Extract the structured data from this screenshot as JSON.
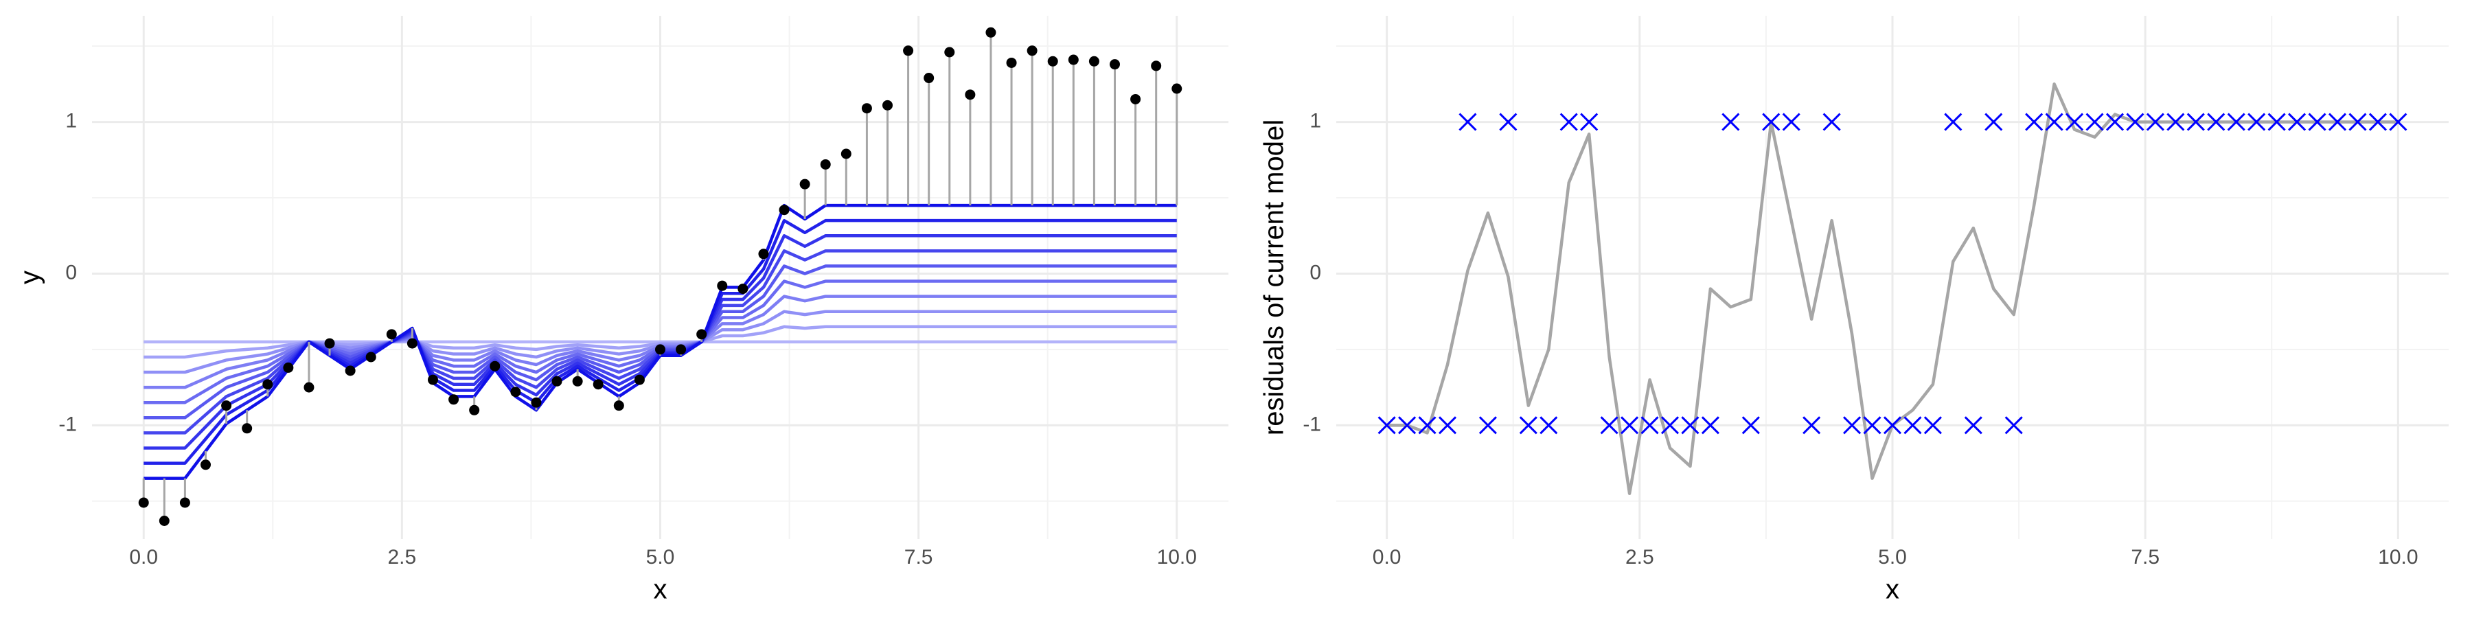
{
  "chart_data": [
    {
      "type": "line",
      "xlabel": "x",
      "ylabel": "y",
      "xlim": [
        -0.5,
        10.5
      ],
      "ylim": [
        -1.75,
        1.7
      ],
      "xticks": [
        {
          "value": 0,
          "label": "0.0"
        },
        2.5,
        {
          "value": 5,
          "label": "5.0"
        },
        7.5,
        {
          "value": 10,
          "label": "10.0"
        }
      ],
      "yticks": [
        -1,
        0,
        1
      ],
      "minor_xticks": [
        1.25,
        3.75,
        6.25,
        8.75
      ],
      "minor_yticks": [
        -1.5,
        -0.5,
        0.5,
        1.5
      ],
      "grid": true,
      "x": [
        0,
        0.2,
        0.4,
        0.6,
        0.8,
        1,
        1.2,
        1.4,
        1.6,
        1.8,
        2,
        2.2,
        2.4,
        2.6,
        2.8,
        3,
        3.2,
        3.4,
        3.6,
        3.8,
        4,
        4.2,
        4.4,
        4.6,
        4.8,
        5,
        5.2,
        5.4,
        5.6,
        5.8,
        6,
        6.2,
        6.4,
        6.6,
        6.8,
        7,
        7.2,
        7.4,
        7.6,
        7.8,
        8,
        8.2,
        8.4,
        8.6,
        8.8,
        9,
        9.2,
        9.4,
        9.6,
        9.8,
        10
      ],
      "series": [
        {
          "style": "line",
          "color": "#b3b3fa",
          "values": [
            -0.45,
            -0.45,
            -0.45,
            -0.45,
            -0.45,
            -0.45,
            -0.45,
            -0.45,
            -0.45,
            -0.45,
            -0.45,
            -0.45,
            -0.45,
            -0.45,
            -0.45,
            -0.45,
            -0.45,
            -0.45,
            -0.45,
            -0.45,
            -0.45,
            -0.45,
            -0.45,
            -0.45,
            -0.45,
            -0.45,
            -0.45,
            -0.45,
            -0.45,
            -0.45,
            -0.45,
            -0.45,
            -0.45,
            -0.45,
            -0.45,
            -0.45,
            -0.45,
            -0.45,
            -0.45,
            -0.45,
            -0.45,
            -0.45,
            -0.45,
            -0.45,
            -0.45,
            -0.45,
            -0.45,
            -0.45,
            -0.45,
            -0.45,
            -0.45
          ]
        },
        {
          "style": "line",
          "color": "#a1a1f8",
          "values": [
            -0.55,
            -0.55,
            -0.55,
            -0.53,
            -0.51,
            -0.5,
            -0.49,
            -0.47,
            -0.45,
            -0.46,
            -0.47,
            -0.46,
            -0.45,
            -0.44,
            -0.48,
            -0.49,
            -0.49,
            -0.47,
            -0.49,
            -0.5,
            -0.48,
            -0.47,
            -0.48,
            -0.49,
            -0.48,
            -0.46,
            -0.46,
            -0.45,
            -0.41,
            -0.41,
            -0.39,
            -0.35,
            -0.36,
            -0.35,
            -0.35,
            -0.35,
            -0.35,
            -0.35,
            -0.35,
            -0.35,
            -0.35,
            -0.35,
            -0.35,
            -0.35,
            -0.35,
            -0.35,
            -0.35,
            -0.35,
            -0.35,
            -0.35,
            -0.35
          ]
        },
        {
          "style": "line",
          "color": "#8f8ff6",
          "values": [
            -0.65,
            -0.65,
            -0.65,
            -0.61,
            -0.57,
            -0.55,
            -0.53,
            -0.49,
            -0.45,
            -0.47,
            -0.49,
            -0.47,
            -0.45,
            -0.43,
            -0.51,
            -0.53,
            -0.53,
            -0.49,
            -0.53,
            -0.55,
            -0.51,
            -0.49,
            -0.51,
            -0.53,
            -0.51,
            -0.47,
            -0.47,
            -0.45,
            -0.37,
            -0.37,
            -0.33,
            -0.25,
            -0.27,
            -0.25,
            -0.25,
            -0.25,
            -0.25,
            -0.25,
            -0.25,
            -0.25,
            -0.25,
            -0.25,
            -0.25,
            -0.25,
            -0.25,
            -0.25,
            -0.25,
            -0.25,
            -0.25,
            -0.25,
            -0.25
          ]
        },
        {
          "style": "line",
          "color": "#7d7df4",
          "values": [
            -0.75,
            -0.75,
            -0.75,
            -0.69,
            -0.63,
            -0.6,
            -0.57,
            -0.51,
            -0.45,
            -0.48,
            -0.51,
            -0.48,
            -0.45,
            -0.42,
            -0.54,
            -0.57,
            -0.57,
            -0.51,
            -0.57,
            -0.6,
            -0.54,
            -0.51,
            -0.54,
            -0.57,
            -0.54,
            -0.48,
            -0.48,
            -0.45,
            -0.33,
            -0.33,
            -0.27,
            -0.15,
            -0.18,
            -0.15,
            -0.15,
            -0.15,
            -0.15,
            -0.15,
            -0.15,
            -0.15,
            -0.15,
            -0.15,
            -0.15,
            -0.15,
            -0.15,
            -0.15,
            -0.15,
            -0.15,
            -0.15,
            -0.15,
            -0.15
          ]
        },
        {
          "style": "line",
          "color": "#6b6bf2",
          "values": [
            -0.85,
            -0.85,
            -0.85,
            -0.77,
            -0.69,
            -0.65,
            -0.61,
            -0.53,
            -0.45,
            -0.49,
            -0.53,
            -0.49,
            -0.45,
            -0.41,
            -0.57,
            -0.61,
            -0.61,
            -0.53,
            -0.61,
            -0.65,
            -0.57,
            -0.53,
            -0.57,
            -0.61,
            -0.57,
            -0.49,
            -0.49,
            -0.45,
            -0.29,
            -0.29,
            -0.21,
            -0.05,
            -0.09,
            -0.05,
            -0.05,
            -0.05,
            -0.05,
            -0.05,
            -0.05,
            -0.05,
            -0.05,
            -0.05,
            -0.05,
            -0.05,
            -0.05,
            -0.05,
            -0.05,
            -0.05,
            -0.05,
            -0.05,
            -0.05
          ]
        },
        {
          "style": "line",
          "color": "#5959f0",
          "values": [
            -0.95,
            -0.95,
            -0.95,
            -0.85,
            -0.75,
            -0.7,
            -0.65,
            -0.55,
            -0.45,
            -0.5,
            -0.55,
            -0.5,
            -0.45,
            -0.4,
            -0.6,
            -0.65,
            -0.65,
            -0.55,
            -0.65,
            -0.7,
            -0.6,
            -0.55,
            -0.6,
            -0.65,
            -0.6,
            -0.5,
            -0.5,
            -0.45,
            -0.25,
            -0.25,
            -0.15,
            0.05,
            0,
            0.05,
            0.05,
            0.05,
            0.05,
            0.05,
            0.05,
            0.05,
            0.05,
            0.05,
            0.05,
            0.05,
            0.05,
            0.05,
            0.05,
            0.05,
            0.05,
            0.05,
            0.05
          ]
        },
        {
          "style": "line",
          "color": "#4646ee",
          "values": [
            -1.05,
            -1.05,
            -1.05,
            -0.93,
            -0.81,
            -0.75,
            -0.69,
            -0.57,
            -0.45,
            -0.51,
            -0.57,
            -0.51,
            -0.45,
            -0.39,
            -0.63,
            -0.69,
            -0.69,
            -0.57,
            -0.69,
            -0.75,
            -0.63,
            -0.57,
            -0.63,
            -0.69,
            -0.63,
            -0.51,
            -0.51,
            -0.45,
            -0.21,
            -0.21,
            -0.09,
            0.15,
            0.09,
            0.15,
            0.15,
            0.15,
            0.15,
            0.15,
            0.15,
            0.15,
            0.15,
            0.15,
            0.15,
            0.15,
            0.15,
            0.15,
            0.15,
            0.15,
            0.15,
            0.15,
            0.15
          ]
        },
        {
          "style": "line",
          "color": "#3434ec",
          "values": [
            -1.15,
            -1.15,
            -1.15,
            -1.01,
            -0.87,
            -0.8,
            -0.73,
            -0.59,
            -0.45,
            -0.52,
            -0.59,
            -0.52,
            -0.45,
            -0.38,
            -0.66,
            -0.73,
            -0.73,
            -0.59,
            -0.73,
            -0.8,
            -0.66,
            -0.59,
            -0.66,
            -0.73,
            -0.66,
            -0.52,
            -0.52,
            -0.45,
            -0.17,
            -0.17,
            -0.03,
            0.25,
            0.18,
            0.25,
            0.25,
            0.25,
            0.25,
            0.25,
            0.25,
            0.25,
            0.25,
            0.25,
            0.25,
            0.25,
            0.25,
            0.25,
            0.25,
            0.25,
            0.25,
            0.25,
            0.25
          ]
        },
        {
          "style": "line",
          "color": "#2222ea",
          "values": [
            -1.25,
            -1.25,
            -1.25,
            -1.09,
            -0.93,
            -0.85,
            -0.77,
            -0.61,
            -0.45,
            -0.53,
            -0.61,
            -0.53,
            -0.45,
            -0.37,
            -0.69,
            -0.77,
            -0.77,
            -0.61,
            -0.77,
            -0.85,
            -0.69,
            -0.61,
            -0.69,
            -0.77,
            -0.69,
            -0.53,
            -0.53,
            -0.45,
            -0.13,
            -0.13,
            0.03,
            0.35,
            0.27,
            0.35,
            0.35,
            0.35,
            0.35,
            0.35,
            0.35,
            0.35,
            0.35,
            0.35,
            0.35,
            0.35,
            0.35,
            0.35,
            0.35,
            0.35,
            0.35,
            0.35,
            0.35
          ]
        },
        {
          "style": "line",
          "color": "#1010e8",
          "values": [
            -1.35,
            -1.35,
            -1.35,
            -1.17,
            -0.99,
            -0.9,
            -0.81,
            -0.63,
            -0.45,
            -0.54,
            -0.63,
            -0.54,
            -0.45,
            -0.36,
            -0.72,
            -0.81,
            -0.81,
            -0.63,
            -0.81,
            -0.9,
            -0.72,
            -0.63,
            -0.72,
            -0.81,
            -0.72,
            -0.54,
            -0.54,
            -0.45,
            -0.09,
            -0.09,
            0.09,
            0.45,
            0.36,
            0.45,
            0.45,
            0.45,
            0.45,
            0.45,
            0.45,
            0.45,
            0.45,
            0.45,
            0.45,
            0.45,
            0.45,
            0.45,
            0.45,
            0.45,
            0.45,
            0.45,
            0.45
          ]
        },
        {
          "style": "points",
          "color": "#000000",
          "stem_color": "#a6a6a6",
          "values": [
            -1.51,
            -1.63,
            -1.51,
            -1.26,
            -0.87,
            -1.02,
            -0.73,
            -0.62,
            -0.75,
            -0.46,
            -0.64,
            -0.55,
            -0.4,
            -0.46,
            -0.7,
            -0.83,
            -0.9,
            -0.61,
            -0.78,
            -0.85,
            -0.71,
            -0.71,
            -0.73,
            -0.87,
            -0.7,
            -0.5,
            -0.5,
            -0.4,
            -0.08,
            -0.1,
            0.13,
            0.42,
            0.59,
            0.72,
            0.79,
            1.09,
            1.11,
            1.47,
            1.29,
            1.46,
            1.18,
            1.59,
            1.39,
            1.47,
            1.4,
            1.41,
            1.4,
            1.38,
            1.15,
            1.37,
            1.22
          ]
        }
      ]
    },
    {
      "type": "line",
      "xlabel": "x",
      "ylabel": "residuals of current model",
      "xlim": [
        -0.5,
        10.5
      ],
      "ylim": [
        -1.75,
        1.7
      ],
      "xticks": [
        {
          "value": 0,
          "label": "0.0"
        },
        2.5,
        {
          "value": 5,
          "label": "5.0"
        },
        7.5,
        {
          "value": 10,
          "label": "10.0"
        }
      ],
      "yticks": [
        -1,
        0,
        1
      ],
      "minor_xticks": [
        1.25,
        3.75,
        6.25,
        8.75
      ],
      "minor_yticks": [
        -1.5,
        -0.5,
        0.5,
        1.5
      ],
      "grid": true,
      "x": [
        0,
        0.2,
        0.4,
        0.6,
        0.8,
        1,
        1.2,
        1.4,
        1.6,
        1.8,
        2,
        2.2,
        2.4,
        2.6,
        2.8,
        3,
        3.2,
        3.4,
        3.6,
        3.8,
        4,
        4.2,
        4.4,
        4.6,
        4.8,
        5,
        5.2,
        5.4,
        5.6,
        5.8,
        6,
        6.2,
        6.4,
        6.6,
        6.8,
        7,
        7.2,
        7.4,
        7.6,
        7.8,
        8,
        8.2,
        8.4,
        8.6,
        8.8,
        9,
        9.2,
        9.4,
        9.6,
        9.8,
        10
      ],
      "series": [
        {
          "style": "line",
          "color": "#a6a6a6",
          "values": [
            -1,
            -1,
            -1.05,
            -0.6,
            0.02,
            0.4,
            -0.02,
            -0.87,
            -0.5,
            0.6,
            0.92,
            -0.55,
            -1.45,
            -0.7,
            -1.15,
            -1.27,
            -0.1,
            -0.22,
            -0.17,
            1,
            0.35,
            -0.3,
            0.35,
            -0.4,
            -1.35,
            -1,
            -0.9,
            -0.73,
            0.08,
            0.3,
            -0.1,
            -0.27,
            0.45,
            1.25,
            0.95,
            0.9,
            1.05,
            1,
            1,
            1,
            1,
            1,
            1,
            1,
            1,
            1,
            1,
            1,
            1,
            1,
            1
          ]
        },
        {
          "style": "crosses",
          "color": "#0000ff",
          "values": [
            -1,
            -1,
            -1,
            -1,
            1,
            -1,
            1,
            -1,
            -1,
            1,
            1,
            -1,
            -1,
            -1,
            -1,
            -1,
            -1,
            1,
            -1,
            1,
            1,
            -1,
            1,
            -1,
            -1,
            -1,
            -1,
            -1,
            1,
            -1,
            1,
            -1,
            1,
            1,
            1,
            1,
            1,
            1,
            1,
            1,
            1,
            1,
            1,
            1,
            1,
            1,
            1,
            1,
            1,
            1,
            1
          ]
        }
      ]
    }
  ]
}
